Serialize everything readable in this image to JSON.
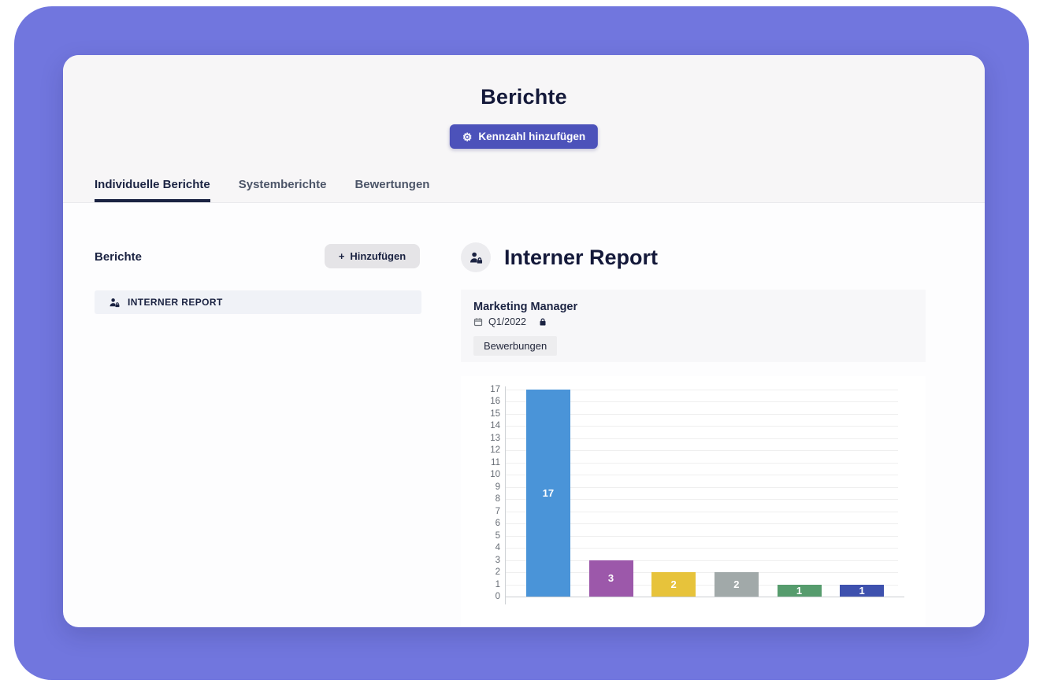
{
  "colors": {
    "frame_purple": "#7176de",
    "primary_button": "#4c52ba",
    "tab_active": "#1b2342",
    "header_bg": "#f7f6f7",
    "card_bg": "#fdfdfe"
  },
  "header": {
    "title": "Berichte",
    "add_metric_button": {
      "label": "Kennzahl hinzufügen",
      "icon": "gear-icon"
    },
    "tabs": [
      {
        "label": "Individuelle Berichte",
        "active": true
      },
      {
        "label": "Systemberichte",
        "active": false
      },
      {
        "label": "Bewertungen",
        "active": false
      }
    ]
  },
  "sidebar": {
    "title": "Berichte",
    "add_button": {
      "plus": "+",
      "label": "Hinzufügen"
    },
    "items": [
      {
        "label": "INTERNER REPORT",
        "icon": "user-lock-icon"
      }
    ]
  },
  "report": {
    "title": "Interner Report",
    "icon": "user-lock-icon",
    "metric_card": {
      "name": "Marketing Manager",
      "period": "Q1/2022",
      "period_icon": "calendar-icon",
      "lock_icon": "lock-icon",
      "badge": "Bewerbungen"
    }
  },
  "chart_data": {
    "type": "bar",
    "categories": [
      "",
      "",
      "",
      "",
      "",
      ""
    ],
    "values": [
      17,
      3,
      2,
      2,
      1,
      1
    ],
    "bar_labels": [
      "17",
      "3",
      "2",
      "2",
      "1",
      "1"
    ],
    "colors": [
      "#4a94d8",
      "#9c58aa",
      "#e7c33b",
      "#a1a9a9",
      "#569c6d",
      "#3e51ae"
    ],
    "title": "",
    "xlabel": "",
    "ylabel": "",
    "ylim": [
      0,
      17
    ],
    "ytick_step": 1,
    "grid": true,
    "legend": false
  }
}
